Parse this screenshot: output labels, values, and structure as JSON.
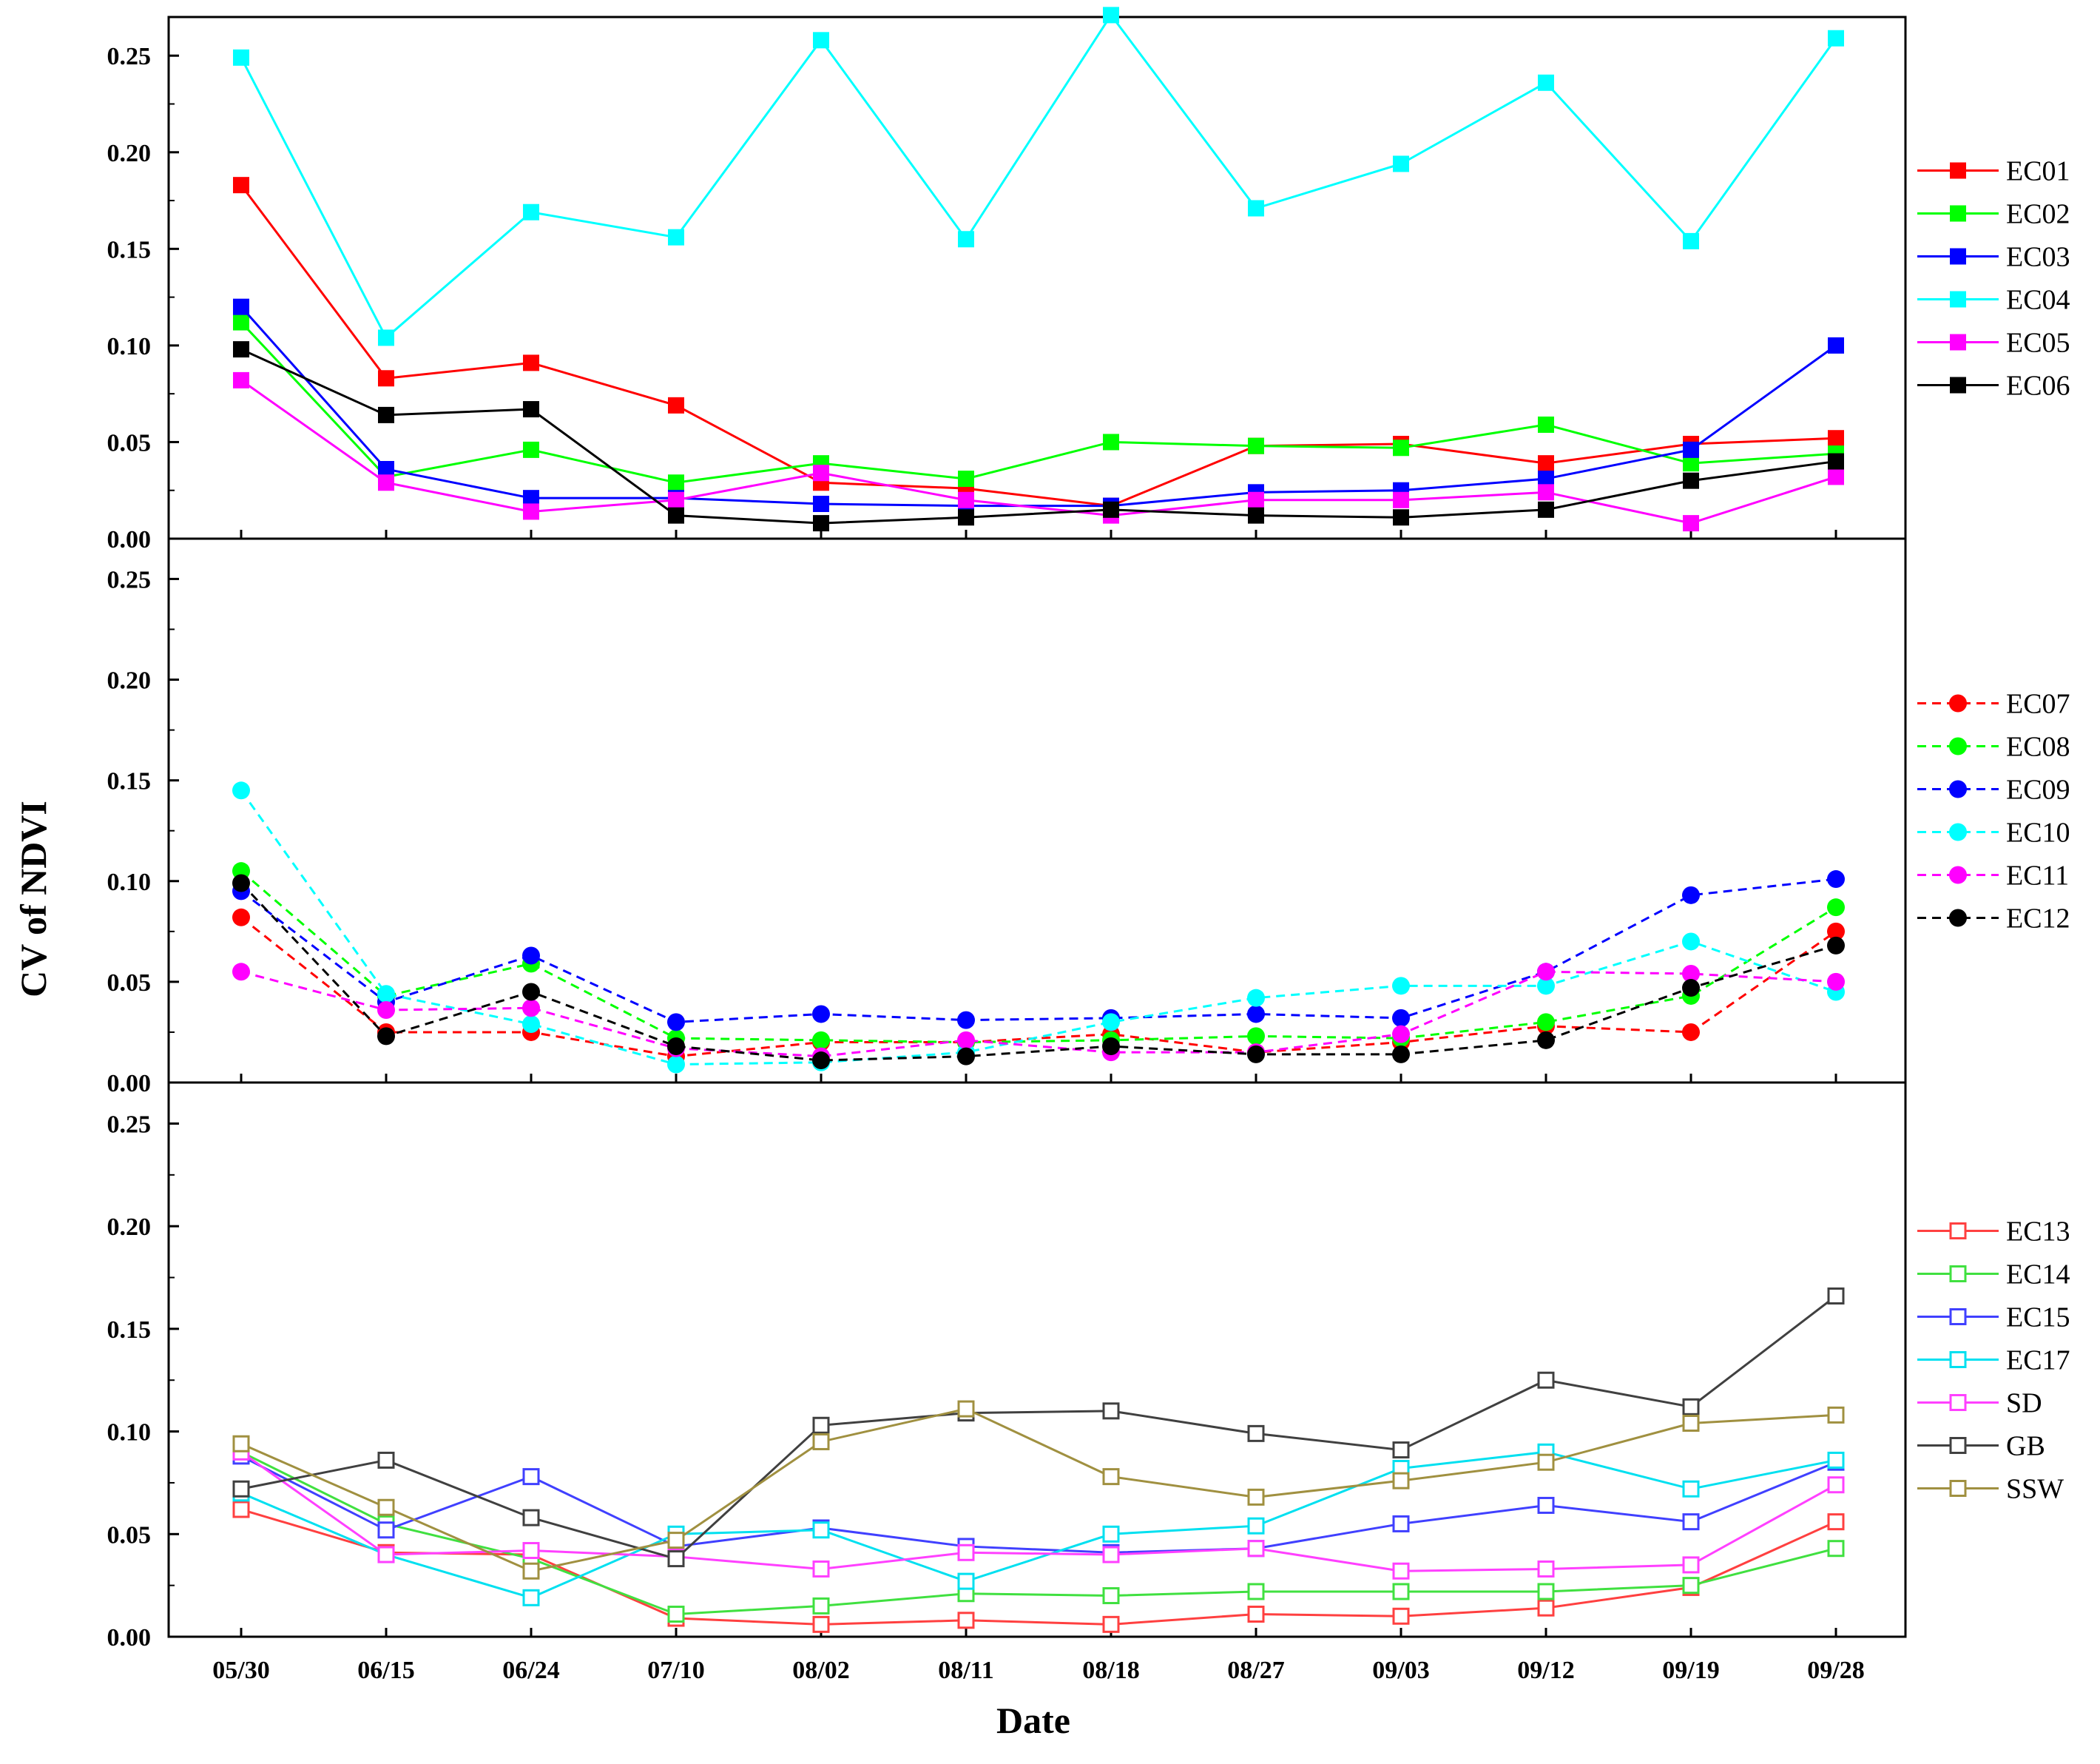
{
  "chart_data": {
    "type": "line",
    "xlabel": "Date",
    "ylabel": "CV of NDVI",
    "categories": [
      "05/30",
      "06/15",
      "06/24",
      "07/10",
      "08/02",
      "08/11",
      "08/18",
      "08/27",
      "09/03",
      "09/12",
      "09/19",
      "09/28"
    ],
    "ylim": [
      0,
      0.27
    ],
    "yticks": [
      "0.00",
      "0.05",
      "0.10",
      "0.15",
      "0.20",
      "0.25"
    ],
    "panels": [
      {
        "marker": "square",
        "dash": false,
        "series": [
          {
            "name": "EC01",
            "color": "#ff0000",
            "values": [
              0.183,
              0.083,
              0.091,
              0.069,
              0.029,
              0.026,
              0.017,
              0.048,
              0.049,
              0.039,
              0.049,
              0.052
            ]
          },
          {
            "name": "EC02",
            "color": "#00ff00",
            "values": [
              0.112,
              0.032,
              0.046,
              0.029,
              0.039,
              0.031,
              0.05,
              0.048,
              0.047,
              0.059,
              0.039,
              0.044
            ]
          },
          {
            "name": "EC03",
            "color": "#0000ff",
            "values": [
              0.12,
              0.036,
              0.021,
              0.021,
              0.018,
              0.017,
              0.017,
              0.024,
              0.025,
              0.031,
              0.046,
              0.1
            ]
          },
          {
            "name": "EC04",
            "color": "#00ffff",
            "values": [
              0.249,
              0.104,
              0.169,
              0.156,
              0.258,
              0.155,
              0.271,
              0.171,
              0.194,
              0.236,
              0.154,
              0.259
            ]
          },
          {
            "name": "EC05",
            "color": "#ff00ff",
            "values": [
              0.082,
              0.029,
              0.014,
              0.02,
              0.034,
              0.02,
              0.012,
              0.02,
              0.02,
              0.024,
              0.008,
              0.032
            ]
          },
          {
            "name": "EC06",
            "color": "#000000",
            "values": [
              0.098,
              0.064,
              0.067,
              0.012,
              0.008,
              0.011,
              0.015,
              0.012,
              0.011,
              0.015,
              0.03,
              0.04
            ]
          }
        ]
      },
      {
        "marker": "circle",
        "dash": true,
        "series": [
          {
            "name": "EC07",
            "color": "#ff0000",
            "values": [
              0.082,
              0.025,
              0.025,
              0.013,
              0.02,
              0.02,
              0.024,
              0.015,
              0.02,
              0.028,
              0.025,
              0.075
            ]
          },
          {
            "name": "EC08",
            "color": "#00ff00",
            "values": [
              0.105,
              0.043,
              0.059,
              0.022,
              0.021,
              0.02,
              0.021,
              0.023,
              0.022,
              0.03,
              0.043,
              0.087
            ]
          },
          {
            "name": "EC09",
            "color": "#0000ff",
            "values": [
              0.095,
              0.04,
              0.063,
              0.03,
              0.034,
              0.031,
              0.032,
              0.034,
              0.032,
              0.055,
              0.093,
              0.101
            ]
          },
          {
            "name": "EC10",
            "color": "#00ffff",
            "values": [
              0.145,
              0.044,
              0.029,
              0.009,
              0.01,
              0.015,
              0.03,
              0.042,
              0.048,
              0.048,
              0.07,
              0.045
            ]
          },
          {
            "name": "EC11",
            "color": "#ff00ff",
            "values": [
              0.055,
              0.036,
              0.037,
              0.017,
              0.013,
              0.021,
              0.015,
              0.015,
              0.024,
              0.055,
              0.054,
              0.05
            ]
          },
          {
            "name": "EC12",
            "color": "#000000",
            "values": [
              0.099,
              0.023,
              0.045,
              0.018,
              0.011,
              0.013,
              0.018,
              0.014,
              0.014,
              0.021,
              0.047,
              0.068
            ]
          }
        ]
      },
      {
        "marker": "square-open",
        "dash": false,
        "series": [
          {
            "name": "EC13",
            "color": "#ff4040",
            "values": [
              0.062,
              0.041,
              0.04,
              0.009,
              0.006,
              0.008,
              0.006,
              0.011,
              0.01,
              0.014,
              0.024,
              0.056
            ]
          },
          {
            "name": "EC14",
            "color": "#40e040",
            "values": [
              0.09,
              0.055,
              0.038,
              0.011,
              0.015,
              0.021,
              0.02,
              0.022,
              0.022,
              0.022,
              0.025,
              0.043
            ]
          },
          {
            "name": "EC15",
            "color": "#4040ff",
            "values": [
              0.088,
              0.052,
              0.078,
              0.044,
              0.053,
              0.044,
              0.041,
              0.043,
              0.055,
              0.064,
              0.056,
              0.085
            ]
          },
          {
            "name": "EC17",
            "color": "#00e0f0",
            "values": [
              0.07,
              0.04,
              0.019,
              0.05,
              0.052,
              0.027,
              0.05,
              0.054,
              0.082,
              0.09,
              0.072,
              0.086
            ]
          },
          {
            "name": "SD",
            "color": "#ff40ff",
            "values": [
              0.09,
              0.04,
              0.042,
              0.039,
              0.033,
              0.041,
              0.04,
              0.043,
              0.032,
              0.033,
              0.035,
              0.074
            ]
          },
          {
            "name": "GB",
            "color": "#404040",
            "values": [
              0.072,
              0.086,
              0.058,
              0.038,
              0.103,
              0.109,
              0.11,
              0.099,
              0.091,
              0.125,
              0.112,
              0.166
            ]
          },
          {
            "name": "SSW",
            "color": "#a09040",
            "values": [
              0.094,
              0.063,
              0.032,
              0.047,
              0.095,
              0.111,
              0.078,
              0.068,
              0.076,
              0.085,
              0.104,
              0.108
            ]
          }
        ]
      }
    ]
  }
}
